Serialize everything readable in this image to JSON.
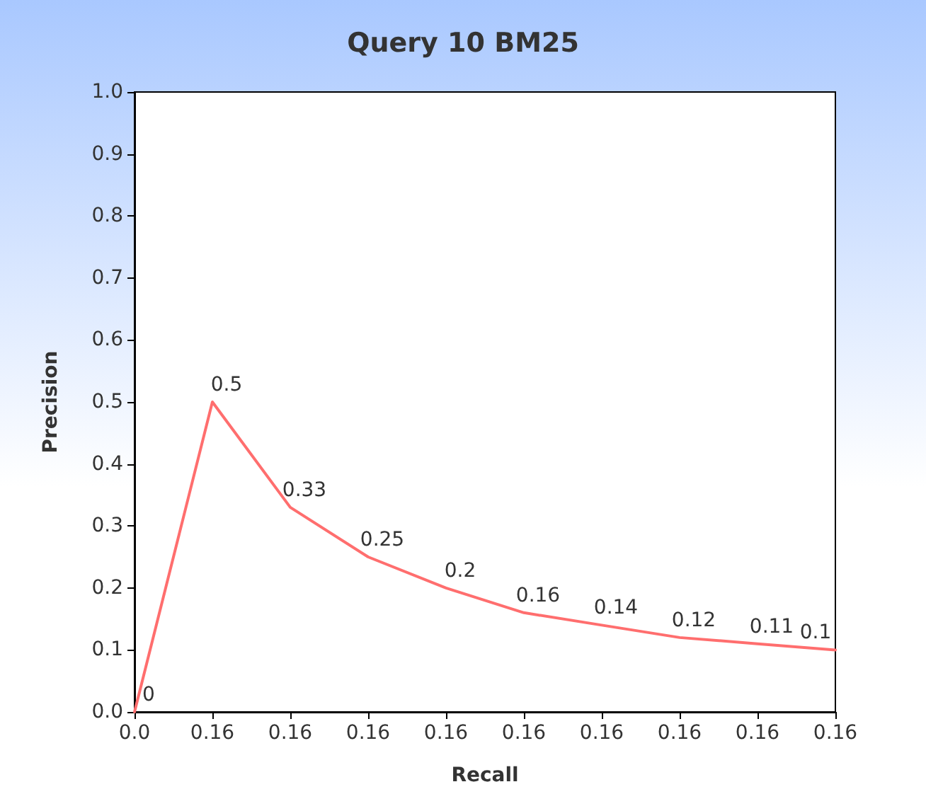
{
  "chart_data": {
    "type": "line",
    "title": "Query 10 BM25",
    "xlabel": "Recall",
    "ylabel": "Precision",
    "categories": [
      "0.0",
      "0.16",
      "0.16",
      "0.16",
      "0.16",
      "0.16",
      "0.16",
      "0.16",
      "0.16",
      "0.16"
    ],
    "series": [
      {
        "color": "#ff6e6e",
        "values": [
          0,
          0.5,
          0.33,
          0.25,
          0.2,
          0.16,
          0.14,
          0.12,
          0.11,
          0.1
        ]
      }
    ],
    "ylim": [
      0,
      1
    ],
    "yticks": [
      {
        "value": 0,
        "label": "0.0"
      },
      0.1,
      0.2,
      0.3,
      0.4,
      0.5,
      0.6,
      0.7,
      0.8,
      0.9,
      {
        "value": 1,
        "label": "1.0"
      }
    ],
    "data_labels": true,
    "grid": false,
    "marker": "none",
    "line_style": "solid"
  }
}
